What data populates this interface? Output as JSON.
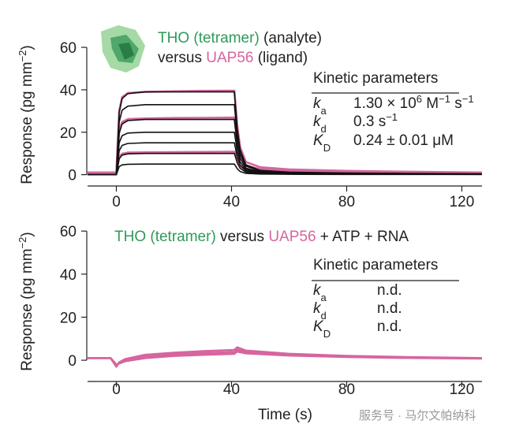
{
  "chart_data": [
    {
      "type": "line",
      "ylabel": [
        "Response (pg mm",
        "−2",
        ")"
      ],
      "annotation": {
        "analyte": "THO (tetramer)",
        "analyte_role": " (analyte)",
        "versus": "versus ",
        "ligand": "UAP56",
        "ligand_role": " (ligand)"
      },
      "kinetics": {
        "title": "Kinetic parameters",
        "rows": [
          {
            "symbol": "k",
            "subscript": "a",
            "value": [
              "1.30 × 10",
              "6",
              " M",
              "−1",
              " s",
              "−1"
            ]
          },
          {
            "symbol": "k",
            "subscript": "d",
            "value": [
              "0.3 s",
              "−1"
            ]
          },
          {
            "symbol": "K",
            "subscript": "D",
            "value": [
              "0.24 ± 0.01 μM"
            ]
          }
        ]
      },
      "x": [
        -10,
        0,
        1,
        2,
        4,
        10,
        20,
        30,
        41,
        42,
        43,
        45,
        50,
        60,
        80,
        100,
        127
      ],
      "xlim": [
        -10,
        127
      ],
      "xticks": [
        0,
        40,
        80,
        120
      ],
      "ylim": [
        -2,
        63
      ],
      "yticks": [
        0,
        20,
        40,
        60
      ],
      "series": [
        {
          "color": "#d6659f",
          "values": [
            1,
            1,
            30,
            36.5,
            38.5,
            39,
            39.3,
            39.5,
            39.6,
            23,
            13,
            6,
            3.5,
            2.5,
            1.8,
            1.4,
            1
          ]
        },
        {
          "color": "#d6659f",
          "values": [
            1,
            1,
            20.5,
            24.8,
            26.2,
            26.5,
            26.7,
            26.8,
            26.9,
            15.5,
            9,
            4.2,
            2.6,
            1.9,
            1.4,
            1.1,
            0.9
          ]
        },
        {
          "color": "#d6659f",
          "values": [
            1,
            1,
            8.3,
            9.9,
            10.4,
            10.5,
            10.6,
            10.7,
            10.8,
            6.5,
            4,
            2.2,
            1.6,
            1.3,
            1.1,
            1,
            0.9
          ]
        },
        {
          "color": "#111111",
          "values": [
            0,
            0,
            29.3,
            35.9,
            38.2,
            39,
            39,
            39,
            39,
            21.5,
            11.7,
            4.7,
            2,
            1.2,
            0.8,
            0.6,
            0.4
          ]
        },
        {
          "color": "#111111",
          "values": [
            0,
            0,
            24.8,
            30.4,
            32.3,
            33,
            33,
            33,
            33,
            18.2,
            9.9,
            4,
            1.7,
            1,
            0.7,
            0.5,
            0.3
          ]
        },
        {
          "color": "#111111",
          "values": [
            0,
            0,
            19.5,
            23.9,
            25.5,
            26,
            26,
            26,
            26,
            14.3,
            7.8,
            3.1,
            1.3,
            0.8,
            0.5,
            0.4,
            0.3
          ]
        },
        {
          "color": "#111111",
          "values": [
            0,
            0,
            15,
            18.4,
            19.6,
            20,
            20,
            20,
            20,
            11,
            6,
            2.4,
            1,
            0.6,
            0.4,
            0.3,
            0.2
          ]
        },
        {
          "color": "#111111",
          "values": [
            0,
            0,
            11.3,
            13.8,
            14.7,
            15,
            15,
            15,
            15,
            8.3,
            4.5,
            1.8,
            0.8,
            0.5,
            0.3,
            0.2,
            0.2
          ]
        },
        {
          "color": "#111111",
          "values": [
            0,
            0,
            7.5,
            9.2,
            9.8,
            10,
            10,
            10,
            10,
            5.5,
            3,
            1.2,
            0.5,
            0.3,
            0.2,
            0.2,
            0.1
          ]
        },
        {
          "color": "#111111",
          "values": [
            0,
            0,
            3.8,
            4.6,
            4.9,
            5,
            5,
            5,
            5,
            2.8,
            1.5,
            0.6,
            0.3,
            0.2,
            0.1,
            0.1,
            0.1
          ]
        }
      ]
    },
    {
      "type": "line",
      "ylabel": [
        "Response (pg mm",
        "−2",
        ")"
      ],
      "xlabel": "Time (s)",
      "annotation": {
        "analyte": "THO (tetramer)",
        "versus": " versus ",
        "ligand": "UAP56",
        "extra": " + ATP + RNA"
      },
      "kinetics": {
        "title": "Kinetic parameters",
        "rows": [
          {
            "symbol": "k",
            "subscript": "a",
            "value": [
              "n.d."
            ]
          },
          {
            "symbol": "k",
            "subscript": "d",
            "value": [
              "n.d."
            ]
          },
          {
            "symbol": "K",
            "subscript": "D",
            "value": [
              "n.d."
            ]
          }
        ]
      },
      "x": [
        -10,
        -2,
        0,
        1,
        3,
        10,
        20,
        30,
        41,
        42,
        45,
        60,
        80,
        100,
        127
      ],
      "xlim": [
        -10,
        127
      ],
      "xticks": [
        0,
        40,
        80,
        120
      ],
      "ylim": [
        -4,
        63
      ],
      "yticks": [
        0,
        20,
        40,
        60
      ],
      "series": [
        {
          "color": "#d6659f",
          "values": [
            1,
            1,
            -3,
            -1,
            0.5,
            2.5,
            3.5,
            4.2,
            4.8,
            6,
            4.5,
            3,
            2,
            1.5,
            1
          ]
        },
        {
          "color": "#d6659f",
          "values": [
            1,
            1,
            -2.5,
            -1.2,
            0,
            1.8,
            2.8,
            3.3,
            3.8,
            5,
            3.8,
            2.6,
            1.8,
            1.3,
            0.9
          ]
        },
        {
          "color": "#d6659f",
          "values": [
            1,
            1,
            -2,
            -1.5,
            -0.5,
            1,
            2,
            2.5,
            3,
            4,
            3.2,
            2.2,
            1.5,
            1.1,
            0.8
          ]
        }
      ]
    }
  ],
  "watermark": "服务号 · 马尔文帕纳科"
}
